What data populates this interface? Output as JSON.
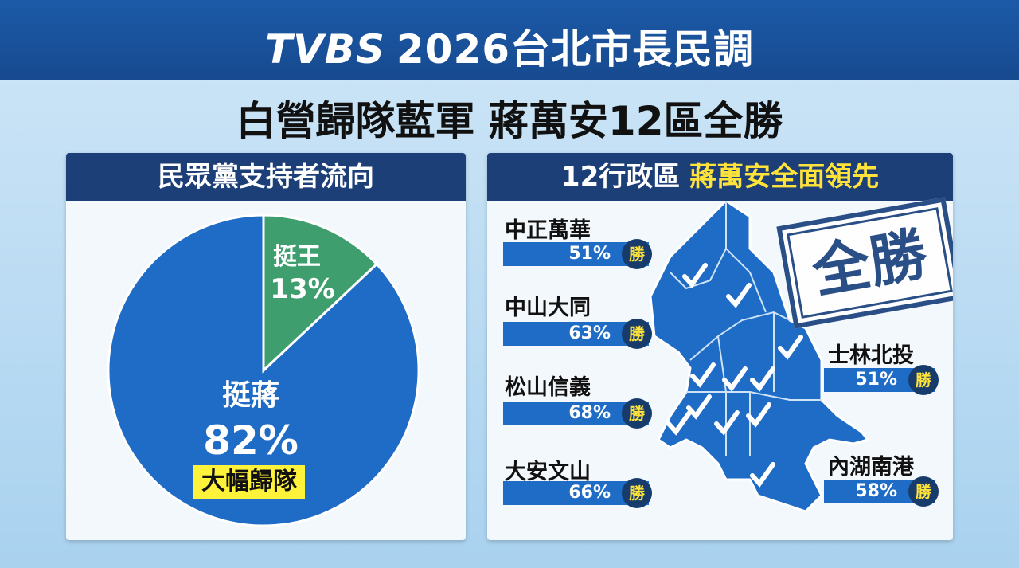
{
  "header": {
    "logo": "TVBS",
    "title": "2026台北市長民調",
    "subtitle": "白營歸隊藍軍 蔣萬安12區全勝"
  },
  "left_panel": {
    "title": "民眾黨支持者流向",
    "annotation": "大幅歸隊"
  },
  "right_panel": {
    "title_prefix": "12行政區",
    "title_highlight": "蔣萬安全面領先",
    "stamp": "全勝",
    "win_label": "勝",
    "districts": [
      {
        "name": "中正萬華",
        "value": "51%"
      },
      {
        "name": "中山大同",
        "value": "63%"
      },
      {
        "name": "松山信義",
        "value": "68%"
      },
      {
        "name": "大安文山",
        "value": "66%"
      },
      {
        "name": "士林北投",
        "value": "51%"
      },
      {
        "name": "內湖南港",
        "value": "58%"
      }
    ]
  },
  "chart_data": {
    "type": "pie",
    "title": "民眾黨支持者流向",
    "slices": [
      {
        "label": "挺王",
        "value": 13,
        "display": "13%",
        "color": "#3f9e6e"
      },
      {
        "label": "挺蔣",
        "value": 82,
        "display": "82%",
        "color": "#1f6cc6"
      }
    ]
  },
  "colors": {
    "header": "#1c5aa8",
    "panel_header": "#1d3f78",
    "highlight": "#ffe23a",
    "bar": "#1f6cc6"
  }
}
